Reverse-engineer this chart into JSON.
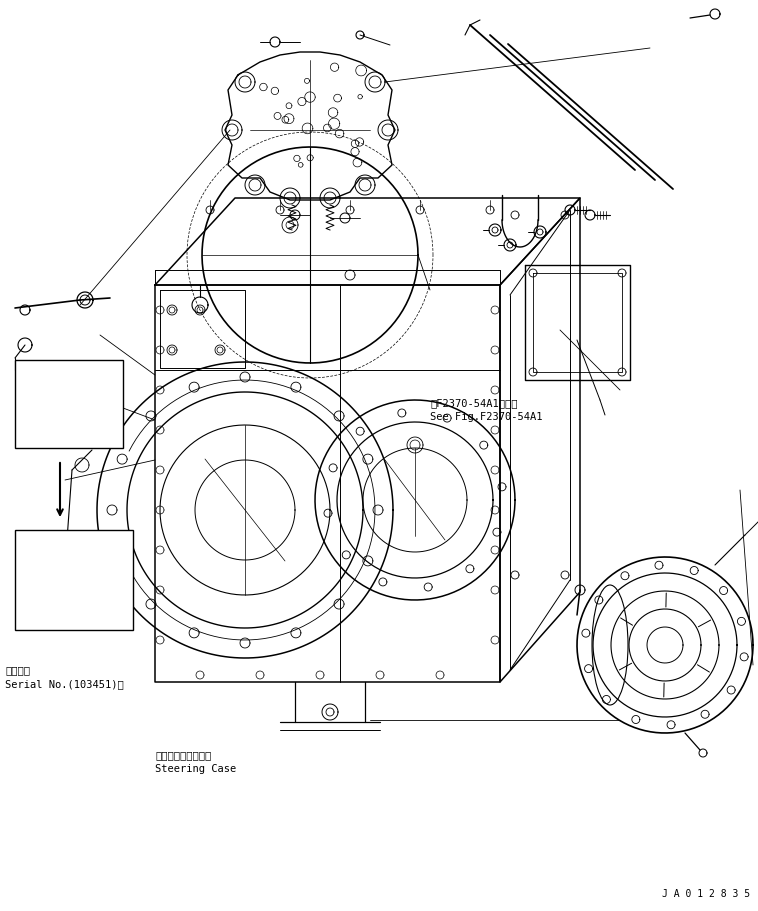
{
  "bg_color": "#ffffff",
  "line_color": "#000000",
  "fig_width": 7.58,
  "fig_height": 9.11,
  "dpi": 100,
  "text_serial": "適用号機\nSerial No.(103451)～",
  "text_steering": "ステアリングケース\nSteering Case",
  "text_fig_ref": "第F2370-54A1図参照\nSee Fig.F2370-54A1",
  "text_id": "J A 0 1 2 8 3 5"
}
